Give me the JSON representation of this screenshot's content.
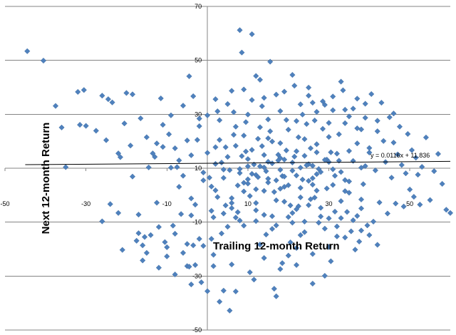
{
  "chart_data": {
    "type": "scatter",
    "title": "",
    "xlabel": "Trailing 12-month Return",
    "ylabel": "Next 12-month Return",
    "xlim": [
      -50,
      60
    ],
    "ylim": [
      -50,
      70
    ],
    "x_ticks": [
      -50,
      -30,
      -10,
      10,
      30,
      50
    ],
    "y_ticks": [
      -50,
      -30,
      -10,
      10,
      30,
      50,
      70
    ],
    "grid": true,
    "legend": "none",
    "marker": "diamond",
    "color": "#4F81BD",
    "trendline": {
      "slope": 0.0116,
      "intercept": 11.836,
      "equation": "y = 0.0116x + 11.836"
    },
    "points": [
      [
        -44.5,
        53.4
      ],
      [
        -40.5,
        49.9
      ],
      [
        -37.5,
        33.1
      ],
      [
        -36,
        25.1
      ],
      [
        -35,
        10.4
      ],
      [
        -32,
        38.3
      ],
      [
        -31.5,
        26.1
      ],
      [
        -30.5,
        39
      ],
      [
        -30,
        25.7
      ],
      [
        -27.5,
        23.9
      ],
      [
        -26,
        36.9
      ],
      [
        -25,
        20.4
      ],
      [
        -24.5,
        35.6
      ],
      [
        -23.5,
        34.4
      ],
      [
        -22,
        15.5
      ],
      [
        -21.5,
        14.1
      ],
      [
        -20.5,
        26.6
      ],
      [
        -20,
        37.9
      ],
      [
        -18.5,
        37.4
      ],
      [
        -18.5,
        6.9
      ],
      [
        -17.5,
        -16.9
      ],
      [
        -17,
        -7.2
      ],
      [
        -16.5,
        28.5
      ],
      [
        -16,
        -18.6
      ],
      [
        -15.5,
        -15.5
      ],
      [
        -15,
        -21.4
      ],
      [
        -14.5,
        10.3
      ],
      [
        -14,
        -14.8
      ],
      [
        -13.5,
        15.5
      ],
      [
        -12.5,
        -2.8
      ],
      [
        -12.5,
        19.2
      ],
      [
        -11.5,
        35.9
      ],
      [
        -11,
        17.9
      ],
      [
        -10.5,
        -17.4
      ],
      [
        -10,
        -19.3
      ],
      [
        -10,
        -22.7
      ],
      [
        -9.5,
        22.6
      ],
      [
        -9,
        29.6
      ],
      [
        -8.5,
        -11.3
      ],
      [
        -8,
        -14.3
      ],
      [
        -7.5,
        10.4
      ],
      [
        -6.5,
        -7
      ],
      [
        -6,
        -21.4
      ],
      [
        -5,
        -18.1
      ],
      [
        -5,
        -26.3
      ],
      [
        -4.5,
        44.1
      ],
      [
        -4.5,
        -26.5
      ],
      [
        -4,
        -7.5
      ],
      [
        -3.5,
        36.7
      ],
      [
        -3,
        -25.9
      ],
      [
        -2.5,
        20.5
      ],
      [
        -2,
        -16.2
      ],
      [
        -1.5,
        -32.3
      ],
      [
        -1,
        -18.8
      ],
      [
        0,
        29.6
      ],
      [
        0.5,
        6.5
      ],
      [
        1,
        -16.2
      ],
      [
        1.5,
        -8.2
      ],
      [
        1.5,
        -26.3
      ],
      [
        2,
        17.8
      ],
      [
        2.5,
        31.1
      ],
      [
        2.5,
        -0.7
      ],
      [
        3,
        -39.5
      ],
      [
        3.5,
        -14.2
      ],
      [
        4,
        -35.4
      ],
      [
        4.5,
        -3.8
      ],
      [
        5,
        -11.7
      ],
      [
        5.5,
        -42.8
      ],
      [
        6,
        -4.8
      ],
      [
        6.5,
        30.8
      ],
      [
        7,
        -35.7
      ],
      [
        7.5,
        -6.3
      ],
      [
        8,
        61.2
      ],
      [
        8.5,
        52.9
      ],
      [
        9,
        -11.3
      ],
      [
        9.5,
        16.2
      ],
      [
        10,
        10.7
      ],
      [
        11,
        59.7
      ],
      [
        11.5,
        -31.3
      ],
      [
        12,
        -2.9
      ],
      [
        12,
        44.2
      ],
      [
        12.5,
        20.9
      ],
      [
        13,
        -18.3
      ],
      [
        13.5,
        33
      ],
      [
        14,
        10.3
      ],
      [
        14.5,
        -14.6
      ],
      [
        15,
        21.1
      ],
      [
        15.5,
        49.5
      ],
      [
        16,
        -7.8
      ],
      [
        16.5,
        -34.7
      ],
      [
        17,
        -37.5
      ],
      [
        17.5,
        15
      ],
      [
        18,
        19.3
      ],
      [
        18.5,
        -25.2
      ],
      [
        19,
        3.1
      ],
      [
        19.5,
        27.9
      ],
      [
        20,
        -22.4
      ],
      [
        20.5,
        -17.5
      ],
      [
        21,
        -10.2
      ],
      [
        21.5,
        40.6
      ],
      [
        22,
        -19.6
      ],
      [
        22.5,
        -4.1
      ],
      [
        23,
        -14.8
      ],
      [
        23.5,
        29.9
      ],
      [
        24,
        -9.8
      ],
      [
        24.5,
        26.4
      ],
      [
        25,
        36.9
      ],
      [
        25.5,
        -1.5
      ],
      [
        26,
        -32.8
      ],
      [
        26.5,
        27.7
      ],
      [
        27,
        15.9
      ],
      [
        27.5,
        -10.2
      ],
      [
        28,
        8.6
      ],
      [
        28.5,
        34.8
      ],
      [
        29,
        -29.9
      ],
      [
        29.5,
        13.2
      ],
      [
        30,
        12.3
      ],
      [
        30.5,
        -24.5
      ],
      [
        31,
        31.5
      ],
      [
        31.5,
        7.2
      ],
      [
        32,
        -15.3
      ],
      [
        32.5,
        22.6
      ],
      [
        33,
        -8.5
      ],
      [
        33.5,
        38.9
      ],
      [
        34,
        5.6
      ],
      [
        34.5,
        -6.2
      ],
      [
        35,
        16.4
      ],
      [
        35.5,
        -13.4
      ],
      [
        36,
        32.1
      ],
      [
        36.5,
        -20.2
      ],
      [
        37,
        24.8
      ],
      [
        37.5,
        -17.2
      ],
      [
        38,
        10.2
      ],
      [
        38.5,
        4.1
      ],
      [
        39,
        28.7
      ],
      [
        39.5,
        -11.2
      ],
      [
        40,
        15.8
      ],
      [
        40.5,
        37.5
      ],
      [
        41,
        -9.8
      ],
      [
        41.5,
        9.2
      ],
      [
        42,
        23.7
      ],
      [
        42.5,
        -2.7
      ],
      [
        43,
        34.3
      ],
      [
        43.5,
        20.1
      ],
      [
        44,
        12.3
      ],
      [
        44.5,
        -6.8
      ],
      [
        45,
        28.9
      ],
      [
        45.5,
        6.5
      ],
      [
        46,
        19.5
      ],
      [
        46.5,
        -3.1
      ],
      [
        47,
        15.1
      ],
      [
        47.5,
        25.4
      ],
      [
        48,
        11.2
      ],
      [
        48.5,
        -4.2
      ],
      [
        49,
        8.1
      ],
      [
        49.5,
        22.7
      ],
      [
        50,
        2.1
      ],
      [
        50.5,
        16.7
      ],
      [
        51,
        -0.6
      ],
      [
        51.5,
        13.9
      ],
      [
        52,
        7.6
      ],
      [
        52.5,
        -3.5
      ],
      [
        53,
        10.5
      ],
      [
        54,
        21.4
      ],
      [
        55,
        -1.8
      ],
      [
        56,
        8.9
      ],
      [
        57,
        15.3
      ],
      [
        58,
        4.2
      ],
      [
        59,
        -5.4
      ],
      [
        60,
        -6.6
      ],
      [
        -9,
        10.2
      ],
      [
        -8,
        17.4
      ],
      [
        -7,
        12.9
      ],
      [
        -6,
        7.2
      ],
      [
        -5,
        20.3
      ],
      [
        -4,
        14.8
      ],
      [
        -3,
        -3.5
      ],
      [
        -2,
        25.6
      ],
      [
        -1,
        8.4
      ],
      [
        0,
        15.7
      ],
      [
        1,
        3.2
      ],
      [
        2,
        11.6
      ],
      [
        3,
        20.5
      ],
      [
        4,
        6.4
      ],
      [
        5,
        14.2
      ],
      [
        6,
        -1.1
      ],
      [
        7,
        18.3
      ],
      [
        8,
        9.7
      ],
      [
        9,
        22.1
      ],
      [
        10,
        4.3
      ],
      [
        11,
        16.8
      ],
      [
        12,
        7.5
      ],
      [
        13,
        25.2
      ],
      [
        14,
        1.6
      ],
      [
        15,
        12.4
      ],
      [
        16,
        19.9
      ],
      [
        17,
        5.5
      ],
      [
        18,
        13.8
      ],
      [
        19,
        -2.4
      ],
      [
        20,
        24.3
      ],
      [
        21,
        9.1
      ],
      [
        22,
        16.3
      ],
      [
        23,
        2.7
      ],
      [
        24,
        20.8
      ],
      [
        25,
        11.5
      ],
      [
        26,
        6.3
      ],
      [
        27,
        18.9
      ],
      [
        28,
        -4.7
      ],
      [
        29,
        13.1
      ],
      [
        30,
        21.6
      ],
      [
        31,
        3.8
      ],
      [
        32,
        15.4
      ],
      [
        33,
        8.6
      ],
      [
        34,
        26.7
      ],
      [
        35,
        0.9
      ],
      [
        36,
        12.7
      ],
      [
        37,
        19.2
      ],
      [
        38,
        -1.6
      ],
      [
        39,
        10.8
      ],
      [
        40,
        17.5
      ],
      [
        3.5,
        12.1
      ],
      [
        4.5,
        17.8
      ],
      [
        5.5,
        9.3
      ],
      [
        6.5,
        22.4
      ],
      [
        7.5,
        3.6
      ],
      [
        8.5,
        14.5
      ],
      [
        9.5,
        27.1
      ],
      [
        10.5,
        -0.3
      ],
      [
        11.5,
        11.4
      ],
      [
        12.5,
        6.7
      ],
      [
        13.5,
        18.2
      ],
      [
        14.5,
        8.9
      ],
      [
        15.5,
        23.7
      ],
      [
        16.5,
        1.2
      ],
      [
        17.5,
        12.9
      ],
      [
        18.5,
        7.1
      ],
      [
        19.5,
        16.6
      ],
      [
        20.5,
        -3.8
      ],
      [
        21.5,
        14.3
      ],
      [
        22.5,
        21.5
      ],
      [
        23.5,
        5.8
      ],
      [
        24.5,
        11.1
      ],
      [
        25.5,
        17.4
      ],
      [
        26.5,
        -0.9
      ],
      [
        27.5,
        9.7
      ],
      [
        28.5,
        24.6
      ],
      [
        29.5,
        2.5
      ],
      [
        30.5,
        15.9
      ],
      [
        31.5,
        -6.1
      ],
      [
        32.5,
        12.8
      ],
      [
        -15,
        21.5
      ],
      [
        -13,
        14.2
      ],
      [
        -11,
        26.1
      ],
      [
        -19,
        18.4
      ],
      [
        -12,
        -11.8
      ],
      [
        -3.5,
        -18.6
      ],
      [
        1.5,
        -22.1
      ],
      [
        6,
        -25.7
      ],
      [
        10.5,
        -28.6
      ],
      [
        14,
        -23.3
      ],
      [
        18,
        -27.4
      ],
      [
        22,
        -25.9
      ],
      [
        26,
        -21.8
      ],
      [
        30,
        -19.2
      ],
      [
        34,
        -15.7
      ],
      [
        38,
        -13.1
      ],
      [
        42,
        -18.4
      ],
      [
        5,
        33.8
      ],
      [
        9,
        39.2
      ],
      [
        13,
        42.8
      ],
      [
        17,
        37.3
      ],
      [
        21,
        44.6
      ],
      [
        25,
        39.9
      ],
      [
        29,
        33.5
      ],
      [
        33,
        42.1
      ],
      [
        37,
        35.8
      ],
      [
        3,
        27.8
      ],
      [
        7,
        25.4
      ],
      [
        11,
        35.3
      ],
      [
        15,
        28.1
      ],
      [
        19,
        38.4
      ],
      [
        23,
        33.7
      ],
      [
        27,
        30.9
      ],
      [
        31,
        36.6
      ],
      [
        35,
        29.2
      ],
      [
        39,
        33.9
      ],
      [
        -6,
        33.2
      ],
      [
        -2,
        28.4
      ],
      [
        2,
        35.6
      ],
      [
        6,
        38.7
      ],
      [
        10,
        29.9
      ],
      [
        14,
        36.1
      ],
      [
        18,
        31.2
      ],
      [
        22,
        27.5
      ],
      [
        26,
        34.3
      ],
      [
        30,
        26.8
      ],
      [
        34,
        31.7
      ],
      [
        38,
        24.4
      ],
      [
        42,
        27.6
      ],
      [
        46,
        30.3
      ],
      [
        4,
        -6.8
      ],
      [
        8,
        -9.4
      ],
      [
        12,
        -5.6
      ],
      [
        16,
        -12.5
      ],
      [
        20,
        -8.1
      ],
      [
        24,
        -13.7
      ],
      [
        28,
        -7.9
      ],
      [
        32,
        -11.6
      ],
      [
        36,
        -9.3
      ],
      [
        40,
        -14.8
      ],
      [
        2,
        1.8
      ],
      [
        6,
        -2.9
      ],
      [
        10,
        5.9
      ],
      [
        14,
        -7.3
      ],
      [
        18,
        2.4
      ],
      [
        22,
        -5.2
      ],
      [
        26,
        3.9
      ],
      [
        30,
        -8.6
      ],
      [
        34,
        1.5
      ],
      [
        38,
        -4.9
      ],
      [
        -7,
        3.1
      ],
      [
        -4,
        -1.2
      ],
      [
        -1,
        5.5
      ],
      [
        1,
        -5.8
      ],
      [
        4,
        9.5
      ],
      [
        7,
        -8.3
      ],
      [
        9,
        1.4
      ],
      [
        12,
        -9.6
      ],
      [
        15,
        4.7
      ],
      [
        17,
        -11.2
      ],
      [
        19,
        6.9
      ],
      [
        21,
        -6.6
      ],
      [
        23,
        10.2
      ],
      [
        25,
        -3.7
      ],
      [
        27,
        7.8
      ],
      [
        29,
        -12.4
      ],
      [
        31,
        9.6
      ],
      [
        33,
        -2.2
      ],
      [
        35,
        5.1
      ],
      [
        37,
        -7.7
      ],
      [
        8,
        8.2
      ],
      [
        9,
        4.6
      ],
      [
        10,
        13.4
      ],
      [
        11,
        7.9
      ],
      [
        12,
        2.2
      ],
      [
        13,
        10.7
      ],
      [
        14,
        14.9
      ],
      [
        15,
        6.1
      ],
      [
        16,
        11.8
      ],
      [
        17,
        -1.9
      ],
      [
        18,
        9.4
      ],
      [
        19,
        13.2
      ],
      [
        20,
        3.7
      ],
      [
        21,
        12.1
      ],
      [
        22,
        7.3
      ],
      [
        23,
        -0.8
      ],
      [
        24,
        14.6
      ],
      [
        25,
        5.3
      ],
      [
        26,
        10.9
      ],
      [
        27,
        1.7
      ],
      [
        -21,
        -20.3
      ],
      [
        -16,
        -24.2
      ],
      [
        -12,
        -26.9
      ],
      [
        -8,
        -29.4
      ],
      [
        -4,
        -33.1
      ],
      [
        0,
        -35.6
      ],
      [
        -22,
        -6.6
      ],
      [
        -17,
        -14.1
      ],
      [
        -26,
        -9.7
      ],
      [
        -24,
        -3.3
      ]
    ]
  }
}
